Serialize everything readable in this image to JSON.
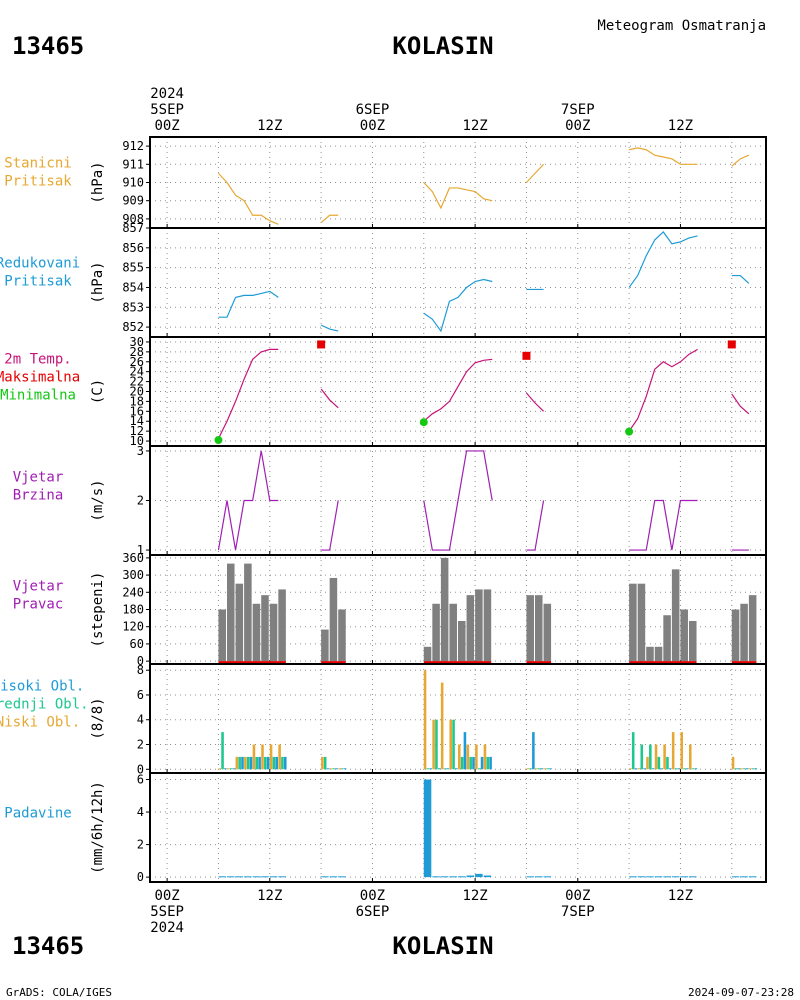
{
  "header": {
    "station_id": "13465",
    "station_name": "KOLASIN",
    "product": "Meteogram Osmatranja"
  },
  "footer": {
    "credit": "GrADS: COLA/IGES",
    "timestamp": "2024-09-07-23:28"
  },
  "time_axis": {
    "top_labels": [
      {
        "h": 0,
        "lines": [
          "2024",
          "5SEP",
          "00Z"
        ]
      },
      {
        "h": 12,
        "lines": [
          "12Z"
        ]
      },
      {
        "h": 24,
        "lines": [
          "6SEP",
          "00Z"
        ]
      },
      {
        "h": 36,
        "lines": [
          "12Z"
        ]
      },
      {
        "h": 48,
        "lines": [
          "7SEP",
          "00Z"
        ]
      },
      {
        "h": 60,
        "lines": [
          "12Z"
        ]
      }
    ],
    "bottom_labels": [
      {
        "h": 0,
        "lines": [
          "00Z",
          "5SEP",
          "2024"
        ]
      },
      {
        "h": 12,
        "lines": [
          "12Z"
        ]
      },
      {
        "h": 24,
        "lines": [
          "00Z",
          "6SEP"
        ]
      },
      {
        "h": 36,
        "lines": [
          "12Z"
        ]
      },
      {
        "h": 48,
        "lines": [
          "00Z",
          "7SEP"
        ]
      },
      {
        "h": 60,
        "lines": [
          "12Z"
        ]
      }
    ]
  },
  "colors": {
    "orange": "#e6a832",
    "blue": "#1e9bd7",
    "magenta": "#c8147a",
    "red": "#e60000",
    "green": "#14c814",
    "purple": "#a01eb4",
    "gray": "#808080",
    "teal": "#1ec88c"
  },
  "chart_data": [
    {
      "type": "line",
      "panel": "station_pressure",
      "labels": [
        "Stanicni",
        "Pritisak"
      ],
      "label_color": "#e6a832",
      "ylabel": "(hPa)",
      "ylim": [
        907.5,
        912.5
      ],
      "yticks": [
        908,
        909,
        910,
        911,
        912
      ],
      "series": [
        {
          "color": "#e6a832",
          "x": [
            6,
            7,
            8,
            9,
            10,
            11,
            12,
            13
          ],
          "y": [
            910.5,
            910.0,
            909.3,
            909.0,
            908.2,
            908.2,
            907.9,
            907.7
          ]
        },
        {
          "color": "#e6a832",
          "x": [
            18,
            19,
            20
          ],
          "y": [
            907.8,
            908.2,
            908.2
          ]
        },
        {
          "color": "#e6a832",
          "x": [
            30,
            31,
            32,
            33,
            34,
            35,
            36,
            37,
            38
          ],
          "y": [
            910.0,
            909.5,
            908.6,
            909.7,
            909.7,
            909.6,
            909.5,
            909.1,
            909.0
          ]
        },
        {
          "color": "#e6a832",
          "x": [
            42,
            43,
            44
          ],
          "y": [
            910.0,
            910.5,
            911.0
          ]
        },
        {
          "color": "#e6a832",
          "x": [
            54,
            55,
            56,
            57,
            58,
            59,
            60,
            61,
            62
          ],
          "y": [
            911.8,
            911.9,
            911.8,
            911.5,
            911.4,
            911.3,
            911.0,
            911.0,
            911.0
          ]
        },
        {
          "color": "#e6a832",
          "x": [
            66,
            67,
            68
          ],
          "y": [
            910.9,
            911.3,
            911.5
          ]
        }
      ]
    },
    {
      "type": "line",
      "panel": "reduced_pressure",
      "labels": [
        "Redukovani",
        "Pritisak"
      ],
      "label_color": "#1e9bd7",
      "ylabel": "(hPa)",
      "ylim": [
        851.5,
        857.0
      ],
      "yticks": [
        852,
        853,
        854,
        855,
        856,
        857
      ],
      "series": [
        {
          "color": "#1e9bd7",
          "x": [
            6,
            7,
            8,
            9,
            10,
            11,
            12,
            13
          ],
          "y": [
            852.5,
            852.5,
            853.5,
            853.6,
            853.6,
            853.7,
            853.8,
            853.5
          ]
        },
        {
          "color": "#1e9bd7",
          "x": [
            18,
            19,
            20
          ],
          "y": [
            852.1,
            851.9,
            851.8
          ]
        },
        {
          "color": "#1e9bd7",
          "x": [
            30,
            31,
            32,
            33,
            34,
            35,
            36,
            37,
            38
          ],
          "y": [
            852.7,
            852.4,
            851.8,
            853.3,
            853.5,
            854.0,
            854.3,
            854.4,
            854.3
          ]
        },
        {
          "color": "#1e9bd7",
          "x": [
            42,
            43,
            44
          ],
          "y": [
            853.9,
            853.9,
            853.9
          ]
        },
        {
          "color": "#1e9bd7",
          "x": [
            54,
            55,
            56,
            57,
            58,
            59,
            60,
            61,
            62
          ],
          "y": [
            854.0,
            854.6,
            855.6,
            856.4,
            856.8,
            856.2,
            856.3,
            856.5,
            856.6
          ]
        },
        {
          "color": "#1e9bd7",
          "x": [
            66,
            67,
            68
          ],
          "y": [
            854.6,
            854.6,
            854.2
          ]
        }
      ]
    },
    {
      "type": "line",
      "panel": "temperature",
      "labels": [
        "2m Temp.",
        "Maksimalna",
        "Minimalna"
      ],
      "label_colors": [
        "#c8147a",
        "#e60000",
        "#14c814"
      ],
      "ylabel": "(C)",
      "ylim": [
        9,
        31
      ],
      "yticks": [
        10,
        12,
        14,
        16,
        18,
        20,
        22,
        24,
        26,
        28,
        30
      ],
      "series": [
        {
          "color": "#c8147a",
          "x": [
            6,
            7,
            8,
            9,
            10,
            11,
            12,
            13
          ],
          "y": [
            10.5,
            14.0,
            18.0,
            22.5,
            26.5,
            28.0,
            28.5,
            28.5
          ]
        },
        {
          "color": "#c8147a",
          "x": [
            18,
            19,
            20
          ],
          "y": [
            20.5,
            18.3,
            16.7
          ]
        },
        {
          "color": "#c8147a",
          "x": [
            30,
            31,
            32,
            33,
            34,
            35,
            36,
            37,
            38
          ],
          "y": [
            14.0,
            15.5,
            16.5,
            18.0,
            21.0,
            24.0,
            25.8,
            26.3,
            26.5
          ]
        },
        {
          "color": "#c8147a",
          "x": [
            42,
            43,
            44
          ],
          "y": [
            19.7,
            17.7,
            16.0
          ]
        },
        {
          "color": "#c8147a",
          "x": [
            54,
            55,
            56,
            57,
            58,
            59,
            60,
            61,
            62
          ],
          "y": [
            12.0,
            14.5,
            19.0,
            24.5,
            26.0,
            25.0,
            26.0,
            27.5,
            28.5
          ]
        },
        {
          "color": "#c8147a",
          "x": [
            66,
            67,
            68
          ],
          "y": [
            19.5,
            17.0,
            15.5
          ]
        }
      ],
      "max_points": {
        "color": "#e60000",
        "x": [
          18,
          42,
          66
        ],
        "y": [
          29.5,
          27.2,
          29.5
        ]
      },
      "min_points": {
        "color": "#14c814",
        "x": [
          6,
          30,
          54
        ],
        "y": [
          10.2,
          13.8,
          11.9
        ]
      }
    },
    {
      "type": "line",
      "panel": "wind_speed",
      "labels": [
        "Vjetar",
        "Brzina"
      ],
      "label_color": "#a01eb4",
      "ylabel": "(m/s)",
      "ylim": [
        0.9,
        3.1
      ],
      "yticks": [
        1,
        2,
        3
      ],
      "series": [
        {
          "color": "#a01eb4",
          "x": [
            6,
            7,
            8,
            9,
            10,
            11,
            12,
            13
          ],
          "y": [
            1,
            2,
            1,
            2,
            2,
            3,
            2,
            2
          ]
        },
        {
          "color": "#a01eb4",
          "x": [
            18,
            19,
            20
          ],
          "y": [
            1,
            1,
            2
          ]
        },
        {
          "color": "#a01eb4",
          "x": [
            30,
            31,
            32,
            33,
            34,
            35,
            36,
            37,
            38
          ],
          "y": [
            2,
            1,
            1,
            1,
            2,
            3,
            3,
            3,
            2
          ]
        },
        {
          "color": "#a01eb4",
          "x": [
            42,
            43,
            44
          ],
          "y": [
            1,
            1,
            2
          ]
        },
        {
          "color": "#a01eb4",
          "x": [
            54,
            55,
            56,
            57,
            58,
            59,
            60,
            61,
            62
          ],
          "y": [
            1,
            1,
            1,
            2,
            2,
            1,
            2,
            2,
            2
          ]
        },
        {
          "color": "#a01eb4",
          "x": [
            66,
            67,
            68
          ],
          "y": [
            1,
            1,
            1
          ]
        }
      ]
    },
    {
      "type": "bar",
      "panel": "wind_direction",
      "labels": [
        "Vjetar",
        "Pravac"
      ],
      "label_color": "#a01eb4",
      "ylabel": "(stepeni)",
      "ylim": [
        -10,
        370
      ],
      "yticks": [
        0,
        60,
        120,
        180,
        240,
        300,
        360
      ],
      "bar_color": "#808080",
      "baseline_color": "#e60000",
      "x": [
        6,
        7,
        8,
        9,
        10,
        11,
        12,
        13,
        18,
        19,
        20,
        30,
        31,
        32,
        33,
        34,
        35,
        36,
        37,
        42,
        43,
        44,
        54,
        55,
        56,
        57,
        58,
        59,
        60,
        61,
        66,
        67,
        68
      ],
      "values": [
        180,
        340,
        270,
        340,
        200,
        230,
        200,
        250,
        110,
        290,
        180,
        50,
        200,
        360,
        200,
        140,
        230,
        250,
        250,
        230,
        230,
        200,
        270,
        270,
        50,
        50,
        160,
        320,
        180,
        140,
        180,
        200,
        230
      ]
    },
    {
      "type": "bar",
      "panel": "cloudiness",
      "labels": [
        "Visoki Obl.",
        "Srednji Obl.",
        "Niski Obl."
      ],
      "label_colors": [
        "#1e9bd7",
        "#1ec88c",
        "#e6a832"
      ],
      "ylabel": "(8/8)",
      "ylim": [
        -0.3,
        8.5
      ],
      "yticks": [
        0,
        2,
        4,
        6,
        8
      ],
      "series": [
        {
          "name": "Niski Obl.",
          "color": "#e6a832",
          "offset": 0.0,
          "x": [
            6,
            7,
            8,
            9,
            10,
            11,
            12,
            13,
            18,
            19,
            20,
            30,
            31,
            32,
            33,
            34,
            35,
            36,
            37,
            42,
            43,
            44,
            54,
            55,
            56,
            57,
            58,
            59,
            60,
            61,
            66,
            67,
            68
          ],
          "values": [
            0,
            0,
            1,
            1,
            2,
            2,
            2,
            2,
            1,
            0,
            0,
            8,
            4,
            7,
            4,
            2,
            2,
            2,
            2,
            0,
            0,
            0,
            0,
            0,
            1,
            2,
            2,
            3,
            3,
            2,
            1,
            0,
            0
          ]
        },
        {
          "name": "Srednji Obl.",
          "color": "#1ec88c",
          "offset": 0.33,
          "x": [
            6,
            7,
            8,
            9,
            10,
            11,
            12,
            13,
            18,
            19,
            20,
            30,
            31,
            32,
            33,
            34,
            35,
            36,
            37,
            42,
            43,
            44,
            54,
            55,
            56,
            57,
            58,
            59,
            60,
            61,
            66,
            67,
            68
          ],
          "values": [
            3,
            0,
            1,
            1,
            1,
            1,
            1,
            1,
            1,
            0,
            0,
            0,
            4,
            0,
            4,
            1,
            1,
            0,
            1,
            0,
            0,
            0,
            3,
            2,
            2,
            1,
            1,
            0,
            0,
            0,
            0,
            0,
            0
          ]
        },
        {
          "name": "Visoki Obl.",
          "color": "#1e9bd7",
          "offset": 0.66,
          "x": [
            6,
            7,
            8,
            9,
            10,
            11,
            12,
            13,
            18,
            19,
            20,
            30,
            31,
            32,
            33,
            34,
            35,
            36,
            37,
            42,
            43,
            44,
            54,
            55,
            56,
            57,
            58,
            59,
            60,
            61,
            66,
            67,
            68
          ],
          "values": [
            0,
            0,
            1,
            1,
            1,
            1,
            1,
            1,
            0,
            0,
            0,
            0,
            0,
            0,
            0,
            3,
            1,
            1,
            1,
            3,
            0,
            0,
            0,
            0,
            0,
            0,
            0,
            0,
            0,
            0,
            0,
            0,
            0
          ]
        }
      ]
    },
    {
      "type": "bar",
      "panel": "precipitation",
      "labels": [
        "Padavine"
      ],
      "label_color": "#1e9bd7",
      "ylabel": "(mm/6h/12h)",
      "ylim": [
        -0.3,
        6.4
      ],
      "yticks": [
        0,
        2,
        4,
        6
      ],
      "bar_color": "#1e9bd7",
      "x": [
        6,
        7,
        8,
        9,
        10,
        11,
        12,
        13,
        18,
        19,
        20,
        30,
        31,
        32,
        33,
        34,
        35,
        36,
        37,
        42,
        43,
        44,
        54,
        55,
        56,
        57,
        58,
        59,
        60,
        61,
        66,
        67,
        68
      ],
      "values": [
        0.05,
        0.05,
        0.05,
        0.05,
        0.05,
        0.05,
        0.05,
        0.05,
        0.05,
        0.05,
        0.05,
        6.0,
        0.05,
        0.05,
        0.05,
        0.05,
        0.1,
        0.2,
        0.1,
        0.05,
        0.05,
        0.05,
        0.05,
        0.05,
        0.05,
        0.05,
        0.05,
        0.05,
        0.05,
        0.05,
        0.05,
        0.05,
        0.05
      ]
    }
  ]
}
